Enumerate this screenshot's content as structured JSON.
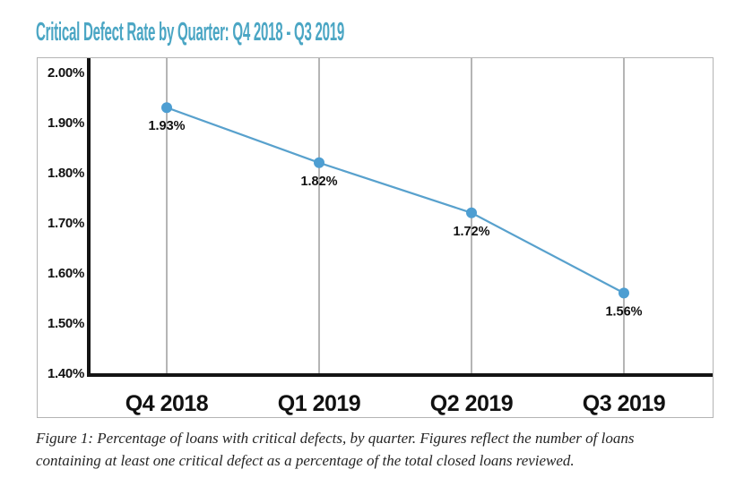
{
  "header": {
    "title": "Critical Defect Rate by Quarter: Q4 2018 - Q3 2019"
  },
  "chart_data": {
    "type": "line",
    "title": "Critical Defect Rate by Quarter: Q4 2018 - Q3 2019",
    "categories": [
      "Q4 2018",
      "Q1 2019",
      "Q2 2019",
      "Q3 2019"
    ],
    "values": [
      1.93,
      1.82,
      1.72,
      1.56
    ],
    "point_labels": [
      "1.93%",
      "1.82%",
      "1.72%",
      "1.56%"
    ],
    "unit": "%",
    "xlabel": "",
    "ylabel": "",
    "ylim": [
      1.4,
      2.0
    ],
    "ytick_step": 0.1,
    "ytick_labels": [
      "2.00%",
      "1.90%",
      "1.80%",
      "1.70%",
      "1.60%",
      "1.50%",
      "1.40%"
    ],
    "grid": "vertical-only",
    "legend": "none",
    "colors": {
      "line": "#58a1cd",
      "marker": "#4d9ed2",
      "axis": "#141414",
      "grid": "#b5b5b5",
      "title": "#4ba6c4",
      "label_text": "#111111"
    }
  },
  "caption": {
    "lines": [
      "Figure 1: Percentage of loans with critical defects, by quarter. Figures reflect the number of loans",
      "containing at least one critical defect as a percentage of the total closed loans reviewed."
    ]
  }
}
